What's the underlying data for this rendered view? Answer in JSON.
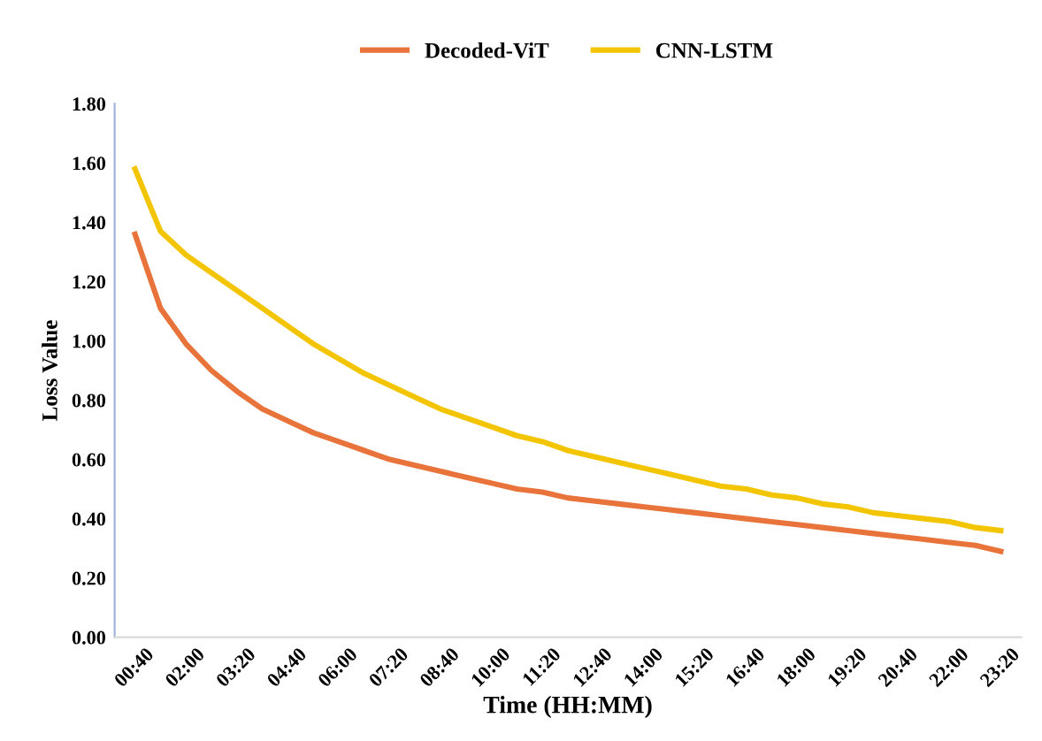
{
  "chart_data": {
    "type": "line",
    "xlabel": "Time (HH:MM)",
    "ylabel": "Loss Value",
    "categories": [
      "00:40",
      null,
      "02:00",
      null,
      "03:20",
      null,
      "04:40",
      null,
      "06:00",
      null,
      "07:20",
      null,
      "08:40",
      null,
      "10:00",
      null,
      "11:20",
      null,
      "12:40",
      null,
      "14:00",
      null,
      "15:20",
      null,
      "16:40",
      null,
      "18:00",
      null,
      "19:20",
      null,
      "20:40",
      null,
      "22:00",
      null,
      "23:20"
    ],
    "series": [
      {
        "name": "Decoded-ViT",
        "color": "#e8743b",
        "values": [
          1.36,
          1.11,
          0.99,
          0.9,
          0.83,
          0.77,
          0.73,
          0.69,
          0.66,
          0.63,
          0.6,
          0.58,
          0.56,
          0.54,
          0.52,
          0.5,
          0.49,
          0.47,
          0.46,
          0.45,
          0.44,
          0.43,
          0.42,
          0.41,
          0.4,
          0.39,
          0.38,
          0.37,
          0.36,
          0.35,
          0.34,
          0.33,
          0.32,
          0.31,
          0.29
        ]
      },
      {
        "name": "CNN-LSTM",
        "color": "#f2c500",
        "values": [
          1.58,
          1.37,
          1.29,
          1.23,
          1.17,
          1.11,
          1.05,
          0.99,
          0.94,
          0.89,
          0.85,
          0.81,
          0.77,
          0.74,
          0.71,
          0.68,
          0.66,
          0.63,
          0.61,
          0.59,
          0.57,
          0.55,
          0.53,
          0.51,
          0.5,
          0.48,
          0.47,
          0.45,
          0.44,
          0.42,
          0.41,
          0.4,
          0.39,
          0.37,
          0.36
        ]
      }
    ],
    "ylim": [
      0,
      1.8
    ],
    "yticks": [
      {
        "value": 0,
        "label": "0.00"
      },
      {
        "value": 0.2,
        "label": "0.20"
      },
      {
        "value": 0.4,
        "label": "0.40"
      },
      {
        "value": 0.6,
        "label": "0.60"
      },
      {
        "value": 0.8,
        "label": "0.80"
      },
      {
        "value": 1.0,
        "label": "1.00"
      },
      {
        "value": 1.2,
        "label": "1.20"
      },
      {
        "value": 1.4,
        "label": "1.40"
      },
      {
        "value": 1.6,
        "label": "1.60"
      },
      {
        "value": 1.8,
        "label": "1.80"
      }
    ],
    "grid": false,
    "legend": "top",
    "line_style": "solid"
  }
}
